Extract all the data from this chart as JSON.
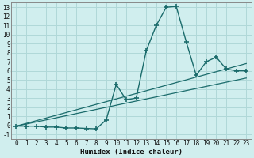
{
  "xlabel": "Humidex (Indice chaleur)",
  "background_color": "#d0eeee",
  "grid_color": "#b0d8d8",
  "line_color": "#1a6b6b",
  "xlim": [
    -0.5,
    23.5
  ],
  "ylim": [
    -1.5,
    13.5
  ],
  "xticks": [
    0,
    1,
    2,
    3,
    4,
    5,
    6,
    7,
    8,
    9,
    10,
    11,
    12,
    13,
    14,
    15,
    16,
    17,
    18,
    19,
    20,
    21,
    22,
    23
  ],
  "yticks": [
    -1,
    0,
    1,
    2,
    3,
    4,
    5,
    6,
    7,
    8,
    9,
    10,
    11,
    12,
    13
  ],
  "curve_x": [
    0,
    1,
    2,
    3,
    4,
    5,
    6,
    7,
    8,
    9,
    10,
    11,
    12,
    13,
    14,
    15,
    16,
    17,
    18,
    19,
    20,
    21,
    22,
    23
  ],
  "curve_y": [
    -0.1,
    -0.1,
    -0.1,
    -0.2,
    -0.2,
    -0.3,
    -0.3,
    -0.35,
    -0.4,
    0.6,
    4.5,
    2.8,
    3.0,
    8.2,
    11.0,
    13.0,
    13.1,
    9.2,
    5.5,
    7.0,
    7.5,
    6.2,
    6.0,
    6.0
  ],
  "line1_x": [
    0,
    23
  ],
  "line1_y": [
    -0.1,
    6.8
  ],
  "line2_x": [
    0,
    23
  ],
  "line2_y": [
    -0.1,
    5.2
  ]
}
